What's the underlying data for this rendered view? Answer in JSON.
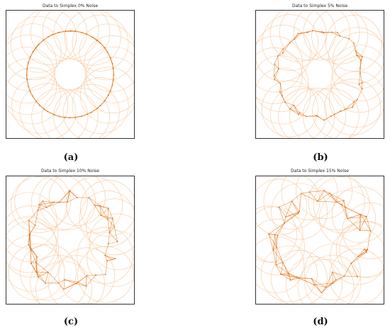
{
  "panels": [
    {
      "title": "Data to Simplex 0% Noise",
      "label": "(a)",
      "noise": 0.0
    },
    {
      "title": "Data to Simplex 5% Noise",
      "label": "(b)",
      "noise": 0.05
    },
    {
      "title": "Data to Simplex 10% Noise",
      "label": "(c)",
      "noise": 0.1
    },
    {
      "title": "Data to Simplex 15% Noise",
      "label": "(d)",
      "noise": 0.15
    }
  ],
  "colors": {
    "circle": "#f8c79a",
    "edge": "#e8781c",
    "point": "#d96a10",
    "frame": "#333333"
  }
}
